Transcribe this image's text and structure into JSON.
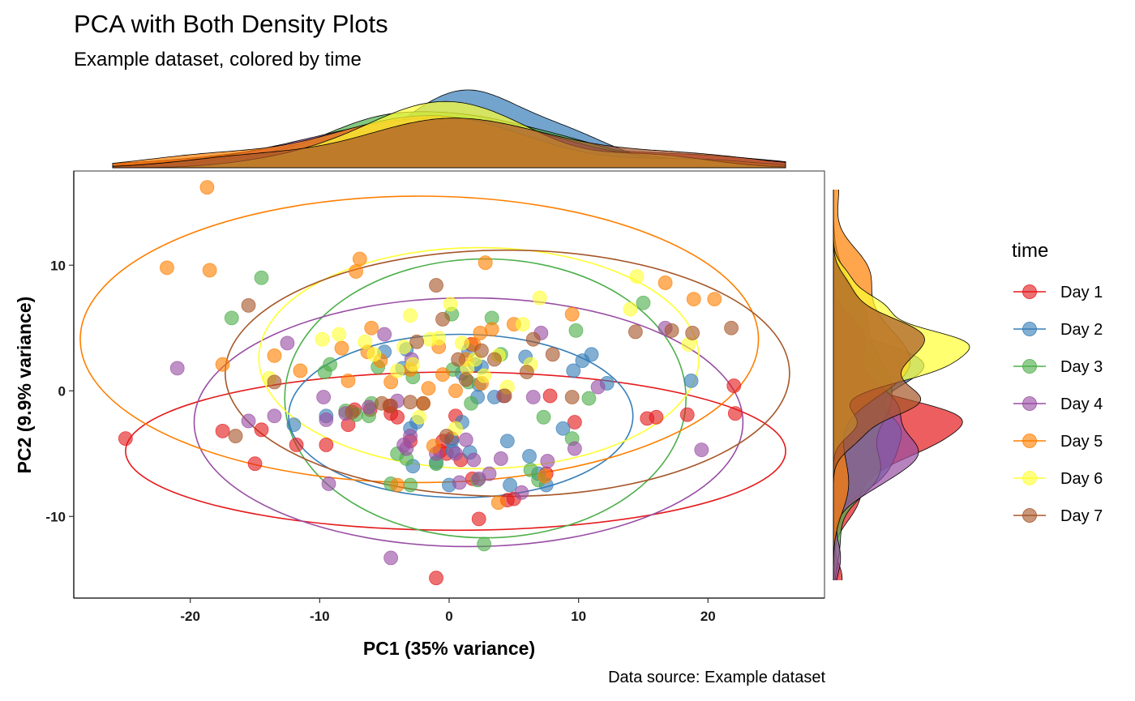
{
  "chart_data": {
    "type": "scatter",
    "title": "PCA with Both Density Plots",
    "subtitle": "Example dataset, colored by time",
    "caption": "Data source: Example dataset",
    "xlabel": "PC1 (35% variance)",
    "ylabel": "PC2 (9.9% variance)",
    "xlim": [
      -29,
      29
    ],
    "ylim": [
      -16.5,
      17.5
    ],
    "xticks": [
      -20,
      -10,
      0,
      10,
      20
    ],
    "yticks": [
      -10,
      0,
      10
    ],
    "grid": false,
    "legend": {
      "title": "time",
      "position": "right"
    },
    "marginal_densities": [
      "top",
      "right"
    ],
    "ellipses": true,
    "series": [
      {
        "name": "Day 1",
        "color": "#E41A1C",
        "ellipse": {
          "cx": 0.5,
          "cy": -4.8,
          "rx": 25.5,
          "ry": 6.3
        },
        "x": [
          -25.0,
          22.0,
          22.1,
          18.4,
          16.0,
          15.3,
          9.7,
          7.5,
          7.8,
          5.0,
          4.5,
          2.3,
          1.8,
          0.9,
          0.2,
          -0.5,
          -0.7,
          -1.0,
          -3.0,
          -4.0,
          -4.5,
          -4.6,
          -6.1,
          -7.3,
          -7.8,
          -9.5,
          -11.8,
          -14.5,
          -15.0,
          -17.5,
          0.5,
          -0.2,
          1.7
        ],
        "y": [
          -3.8,
          0.4,
          -1.8,
          -1.9,
          -2.1,
          -2.2,
          -2.5,
          -6.6,
          -0.4,
          -8.6,
          -8.7,
          -10.2,
          -7.0,
          -5.5,
          -3.8,
          -4.0,
          -4.8,
          -14.9,
          -4.0,
          -2.1,
          -1.8,
          -1.2,
          -1.5,
          -1.5,
          -2.7,
          -4.3,
          -4.3,
          -3.1,
          -5.8,
          -3.2,
          -2.0,
          -5.0,
          3.7
        ]
      },
      {
        "name": "Day 2",
        "color": "#377EB8",
        "ellipse": {
          "cx": 0.9,
          "cy": -2.0,
          "rx": 13.3,
          "ry": 6.5
        },
        "x": [
          -12.0,
          -9.5,
          -3.3,
          -3.6,
          -2.8,
          -2.5,
          -1.0,
          0.2,
          0.3,
          1.0,
          1.5,
          2.2,
          2.3,
          2.5,
          3.5,
          4.5,
          4.7,
          5.9,
          6.2,
          6.9,
          7.5,
          8.8,
          9.6,
          10.3,
          11.0,
          12.2,
          18.7,
          -3.0,
          0.0,
          1.0,
          2.0,
          -5.0,
          1.6
        ],
        "y": [
          -2.7,
          -2.0,
          3.3,
          1.8,
          -6.0,
          -2.5,
          -5.7,
          -4.0,
          -4.8,
          -2.5,
          3.2,
          -0.5,
          0.5,
          1.9,
          -0.5,
          -4.0,
          -7.5,
          2.7,
          -5.2,
          -6.6,
          -7.5,
          -3.0,
          1.6,
          2.4,
          2.9,
          0.6,
          0.8,
          -3.0,
          -7.5,
          1.4,
          2.1,
          3.1,
          -4.9
        ]
      },
      {
        "name": "Day 3",
        "color": "#4DAF4A",
        "ellipse": {
          "cx": 2.8,
          "cy": -0.6,
          "rx": 15.5,
          "ry": 11.1
        },
        "x": [
          -16.8,
          -14.5,
          -9.6,
          -9.2,
          -8.0,
          -7.2,
          -6.2,
          -5.5,
          -4.5,
          -3.3,
          -3.0,
          -2.8,
          -1.0,
          0.2,
          1.5,
          2.2,
          2.7,
          3.3,
          4.0,
          6.3,
          6.9,
          7.3,
          9.5,
          9.8,
          10.8,
          15.0,
          -6.0,
          0.3,
          1.7,
          -4.0
        ],
        "y": [
          5.8,
          9.0,
          1.5,
          2.1,
          -1.6,
          -1.9,
          -2.0,
          1.9,
          -7.4,
          -5.4,
          -7.5,
          1.1,
          -5.8,
          6.1,
          0.7,
          -7.1,
          -12.2,
          5.8,
          2.9,
          -6.3,
          -7.1,
          -2.1,
          -3.8,
          4.8,
          -0.6,
          7.0,
          -1.0,
          1.7,
          -1.0,
          -5.0
        ]
      },
      {
        "name": "Day 4",
        "color": "#984EA3",
        "ellipse": {
          "cx": 1.5,
          "cy": -2.5,
          "rx": 21.2,
          "ry": 9.9
        },
        "x": [
          -21.0,
          -15.5,
          -13.5,
          -12.5,
          -9.7,
          -9.5,
          -9.3,
          -8.0,
          -6.2,
          -5.0,
          -4.5,
          -3.3,
          -3.0,
          -2.9,
          -1.0,
          0.5,
          0.8,
          1.9,
          2.3,
          3.1,
          4.0,
          4.2,
          5.6,
          6.5,
          7.1,
          7.6,
          9.7,
          11.5,
          16.7,
          19.5,
          -4.0,
          -3.5,
          1.3
        ],
        "y": [
          1.8,
          -2.4,
          -2.0,
          3.8,
          -0.5,
          -2.3,
          -7.4,
          -1.8,
          -1.3,
          4.5,
          -13.3,
          -4.6,
          -3.6,
          2.5,
          -5.0,
          -5.0,
          -7.3,
          -5.5,
          -7.0,
          -6.6,
          -5.4,
          -0.4,
          -8.1,
          -0.5,
          4.6,
          -5.6,
          -4.6,
          0.3,
          5.0,
          -4.7,
          -0.8,
          -4.3,
          -3.9
        ]
      },
      {
        "name": "Day 5",
        "color": "#FF7F00",
        "ellipse": {
          "cx": -2.3,
          "cy": 4.1,
          "rx": 26.2,
          "ry": 11.4
        },
        "x": [
          -21.8,
          -18.7,
          -18.5,
          -17.5,
          -13.5,
          -11.5,
          -8.3,
          -7.8,
          -7.2,
          -6.3,
          -6.0,
          -5.3,
          -4.5,
          -3.0,
          -2.0,
          -1.6,
          -0.8,
          -0.5,
          0.5,
          1.3,
          2.4,
          2.8,
          3.3,
          3.8,
          5.0,
          7.4,
          9.5,
          16.7,
          18.9,
          20.5,
          -6.9,
          2.5,
          -4.0,
          -1.2,
          1.9
        ],
        "y": [
          9.8,
          16.2,
          9.6,
          2.1,
          2.8,
          1.6,
          3.4,
          0.8,
          9.5,
          3.1,
          5.0,
          2.4,
          0.7,
          1.7,
          -1.0,
          0.2,
          3.5,
          1.3,
          0.0,
          2.5,
          4.6,
          10.2,
          4.9,
          -8.9,
          5.3,
          -6.8,
          6.1,
          8.6,
          7.3,
          7.3,
          10.5,
          0.6,
          -7.5,
          -4.4,
          3.7
        ]
      },
      {
        "name": "Day 6",
        "color": "#FFFF33",
        "ellipse": {
          "cx": 2.3,
          "cy": 2.6,
          "rx": 17.0,
          "ry": 8.8
        },
        "x": [
          -8.5,
          -6.5,
          -5.8,
          -4.0,
          -3.5,
          -3.0,
          -2.8,
          -1.5,
          -0.8,
          0.5,
          1.0,
          2.0,
          2.7,
          3.8,
          4.5,
          5.7,
          6.3,
          7.0,
          14.0,
          14.5,
          18.5,
          -9.8,
          -13.9,
          -2.3,
          0.1,
          1.4
        ],
        "y": [
          4.5,
          3.9,
          2.9,
          1.6,
          3.5,
          6.0,
          2.1,
          4.1,
          4.2,
          -3.0,
          3.8,
          2.5,
          1.2,
          2.8,
          0.3,
          5.3,
          2.1,
          7.4,
          6.5,
          9.1,
          3.7,
          4.1,
          1.0,
          -2.1,
          6.9,
          1.8
        ]
      },
      {
        "name": "Day 7",
        "color": "#A65628",
        "ellipse": {
          "cx": 4.5,
          "cy": 1.4,
          "rx": 21.8,
          "ry": 9.8
        },
        "x": [
          -16.5,
          -15.5,
          -13.5,
          -7.5,
          -5.2,
          -4.5,
          -3.0,
          -2.0,
          -1.0,
          -0.5,
          0.7,
          2.5,
          3.5,
          4.3,
          6.0,
          6.5,
          8.0,
          9.5,
          14.4,
          17.2,
          18.8,
          21.8,
          -0.2,
          -2.5,
          1.3
        ],
        "y": [
          -3.6,
          6.8,
          0.7,
          -1.7,
          -1.0,
          -1.2,
          -0.9,
          -1.0,
          8.4,
          5.7,
          2.5,
          3.2,
          2.5,
          -0.4,
          1.5,
          4.1,
          2.9,
          -0.5,
          4.7,
          4.8,
          4.6,
          5.0,
          -3.6,
          3.9,
          0.9
        ]
      }
    ]
  }
}
